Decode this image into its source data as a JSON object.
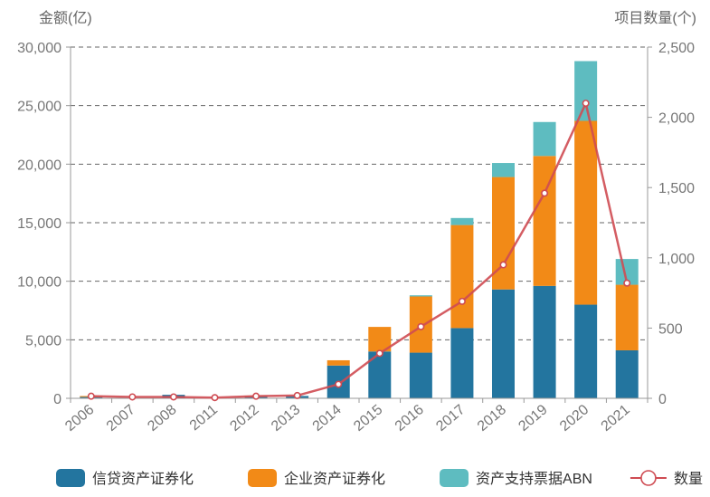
{
  "chart_data": {
    "type": "bar",
    "stacked": true,
    "categories": [
      "2006",
      "2007",
      "2008",
      "2011",
      "2012",
      "2013",
      "2014",
      "2015",
      "2016",
      "2017",
      "2018",
      "2019",
      "2020",
      "2021"
    ],
    "left_axis": {
      "title": "金额(亿)",
      "ylim": [
        0,
        30000
      ],
      "ticks": [
        0,
        5000,
        10000,
        15000,
        20000,
        25000,
        30000
      ],
      "tick_labels": [
        "0",
        "5,000",
        "10,000",
        "15,000",
        "20,000",
        "25,000",
        "30,000"
      ]
    },
    "right_axis": {
      "title": "项目数量(个)",
      "ylim": [
        0,
        2500
      ],
      "ticks": [
        0,
        500,
        1000,
        1500,
        2000,
        2500
      ],
      "tick_labels": [
        "0",
        "500",
        "1,000",
        "1,500",
        "2,000",
        "2,500"
      ]
    },
    "grid": true,
    "legend_position": "bottom",
    "series": [
      {
        "name": "信贷资产证券化",
        "type": "bar",
        "axis": "left",
        "color": "#23759f",
        "values": [
          115,
          0,
          300,
          0,
          150,
          200,
          2800,
          4000,
          3900,
          6000,
          9300,
          9600,
          8000,
          4100
        ]
      },
      {
        "name": "企业资产证券化",
        "type": "bar",
        "axis": "left",
        "color": "#f28a17",
        "values": [
          80,
          0,
          0,
          0,
          50,
          0,
          450,
          2100,
          4800,
          8800,
          9600,
          11100,
          15700,
          5600
        ]
      },
      {
        "name": "资产支持票据ABN",
        "type": "bar",
        "axis": "left",
        "color": "#5ebcc0",
        "values": [
          0,
          0,
          0,
          0,
          0,
          0,
          0,
          0,
          100,
          600,
          1200,
          2900,
          5100,
          2200
        ]
      },
      {
        "name": "数量",
        "type": "line",
        "axis": "right",
        "color": "#cf4b52",
        "values": [
          15,
          10,
          10,
          5,
          15,
          20,
          100,
          320,
          510,
          690,
          950,
          1460,
          2100,
          820
        ]
      }
    ]
  }
}
